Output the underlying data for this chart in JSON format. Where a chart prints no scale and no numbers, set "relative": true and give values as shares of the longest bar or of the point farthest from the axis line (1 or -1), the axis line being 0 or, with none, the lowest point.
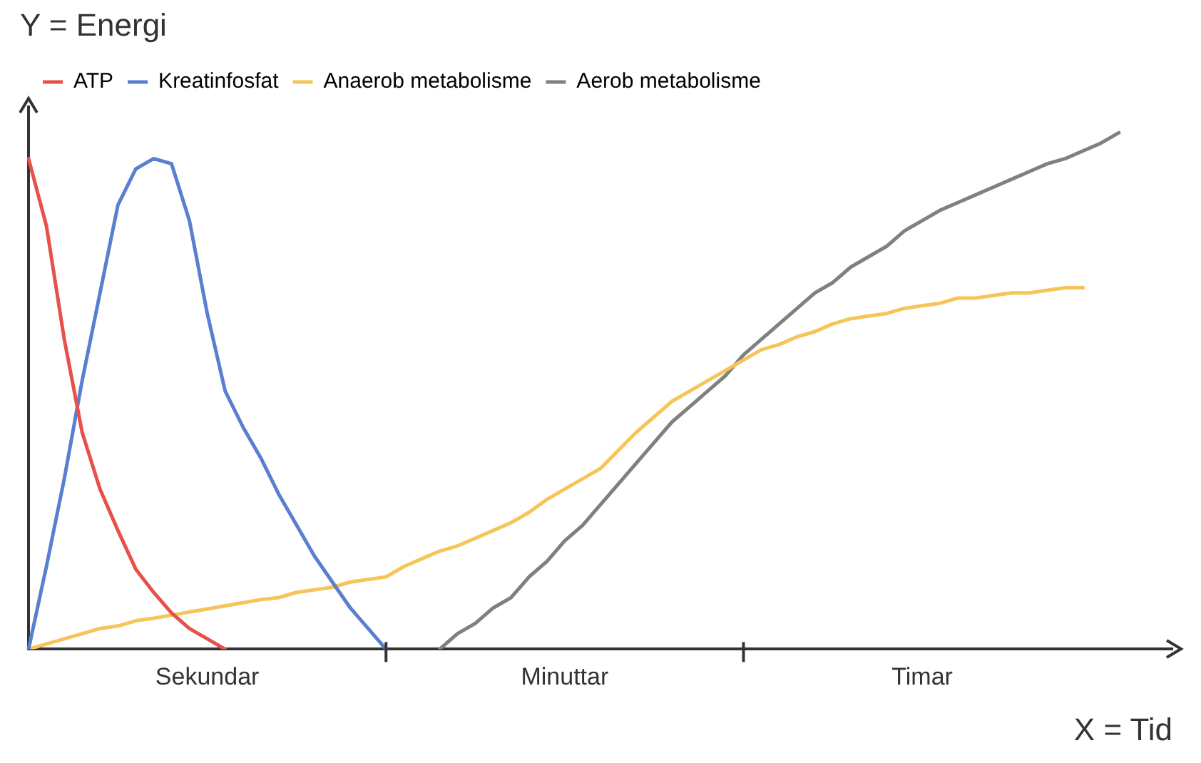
{
  "chart_data": {
    "type": "line",
    "relative": true,
    "xlabel": "X = Tid",
    "ylabel": "Y = Energi",
    "legend": "top left",
    "marker": "none",
    "grid": false,
    "categories": [
      null,
      null,
      null,
      null,
      null,
      null,
      null,
      null,
      null,
      null,
      "Sekundar",
      null,
      null,
      null,
      null,
      null,
      null,
      null,
      null,
      null,
      null,
      null,
      null,
      null,
      null,
      null,
      null,
      null,
      null,
      null,
      "Minuttar",
      null,
      null,
      null,
      null,
      null,
      null,
      null,
      null,
      null,
      null,
      null,
      null,
      null,
      null,
      null,
      null,
      null,
      null,
      null,
      "Timar",
      null,
      null,
      null,
      null,
      null,
      null,
      null,
      null,
      null,
      null,
      null,
      null,
      null,
      null
    ],
    "series": [
      {
        "name": "ATP",
        "color": "#e8504a",
        "values": [
          0.95,
          0.82,
          0.6,
          0.42,
          0.31,
          0.23,
          0.155,
          0.11,
          0.07,
          0.04,
          0.02,
          0,
          null,
          null,
          null,
          null,
          null,
          null,
          null,
          null,
          null,
          null,
          null,
          null,
          null,
          null,
          null,
          null,
          null,
          null,
          null,
          null,
          null,
          null,
          null,
          null,
          null,
          null,
          null,
          null,
          null,
          null,
          null,
          null,
          null,
          null,
          null,
          null,
          null,
          null,
          null,
          null,
          null,
          null,
          null,
          null,
          null,
          null,
          null,
          null,
          null,
          null,
          null,
          null,
          null
        ]
      },
      {
        "name": "Kreatinfosfat",
        "color": "#5b7fd0",
        "values": [
          0,
          0.16,
          0.33,
          0.52,
          0.69,
          0.86,
          0.93,
          0.95,
          0.94,
          0.83,
          0.65,
          0.5,
          0.43,
          0.37,
          0.3,
          0.24,
          0.18,
          0.13,
          0.08,
          0.04,
          0,
          null,
          null,
          null,
          null,
          null,
          null,
          null,
          null,
          null,
          null,
          null,
          null,
          null,
          null,
          null,
          null,
          null,
          null,
          null,
          null,
          null,
          null,
          null,
          null,
          null,
          null,
          null,
          null,
          null,
          null,
          null,
          null,
          null,
          null,
          null,
          null,
          null,
          null,
          null,
          null,
          null,
          null,
          null,
          null
        ]
      },
      {
        "name": "Anaerob metabolisme",
        "color": "#f5c55a",
        "values": [
          0,
          0.01,
          0.02,
          0.03,
          0.04,
          0.045,
          0.055,
          0.06,
          0.066,
          0.072,
          0.078,
          0.084,
          0.09,
          0.096,
          0.1,
          0.11,
          0.115,
          0.12,
          0.13,
          0.135,
          0.14,
          0.16,
          0.175,
          0.19,
          0.2,
          0.215,
          0.23,
          0.245,
          0.265,
          0.29,
          0.31,
          0.33,
          0.35,
          0.385,
          0.42,
          0.45,
          0.48,
          0.5,
          0.52,
          0.54,
          0.56,
          0.58,
          0.59,
          0.605,
          0.615,
          0.63,
          0.64,
          0.645,
          0.65,
          0.66,
          0.665,
          0.67,
          0.68,
          0.68,
          0.685,
          0.69,
          0.69,
          0.695,
          0.7,
          0.7,
          null,
          null,
          null,
          null,
          null
        ]
      },
      {
        "name": "Aerob metabolisme",
        "color": "#808080",
        "values": [
          null,
          null,
          null,
          null,
          null,
          null,
          null,
          null,
          null,
          null,
          null,
          null,
          null,
          null,
          null,
          null,
          null,
          null,
          null,
          null,
          null,
          null,
          null,
          0,
          0.03,
          0.05,
          0.08,
          0.1,
          0.14,
          0.17,
          0.21,
          0.24,
          0.28,
          0.32,
          0.36,
          0.4,
          0.44,
          0.47,
          0.5,
          0.53,
          0.57,
          0.6,
          0.63,
          0.66,
          0.69,
          0.71,
          0.74,
          0.76,
          0.78,
          0.81,
          0.83,
          0.85,
          0.865,
          0.88,
          0.895,
          0.91,
          0.925,
          0.94,
          0.95,
          0.965,
          0.98,
          1,
          null,
          null,
          null
        ]
      }
    ]
  }
}
